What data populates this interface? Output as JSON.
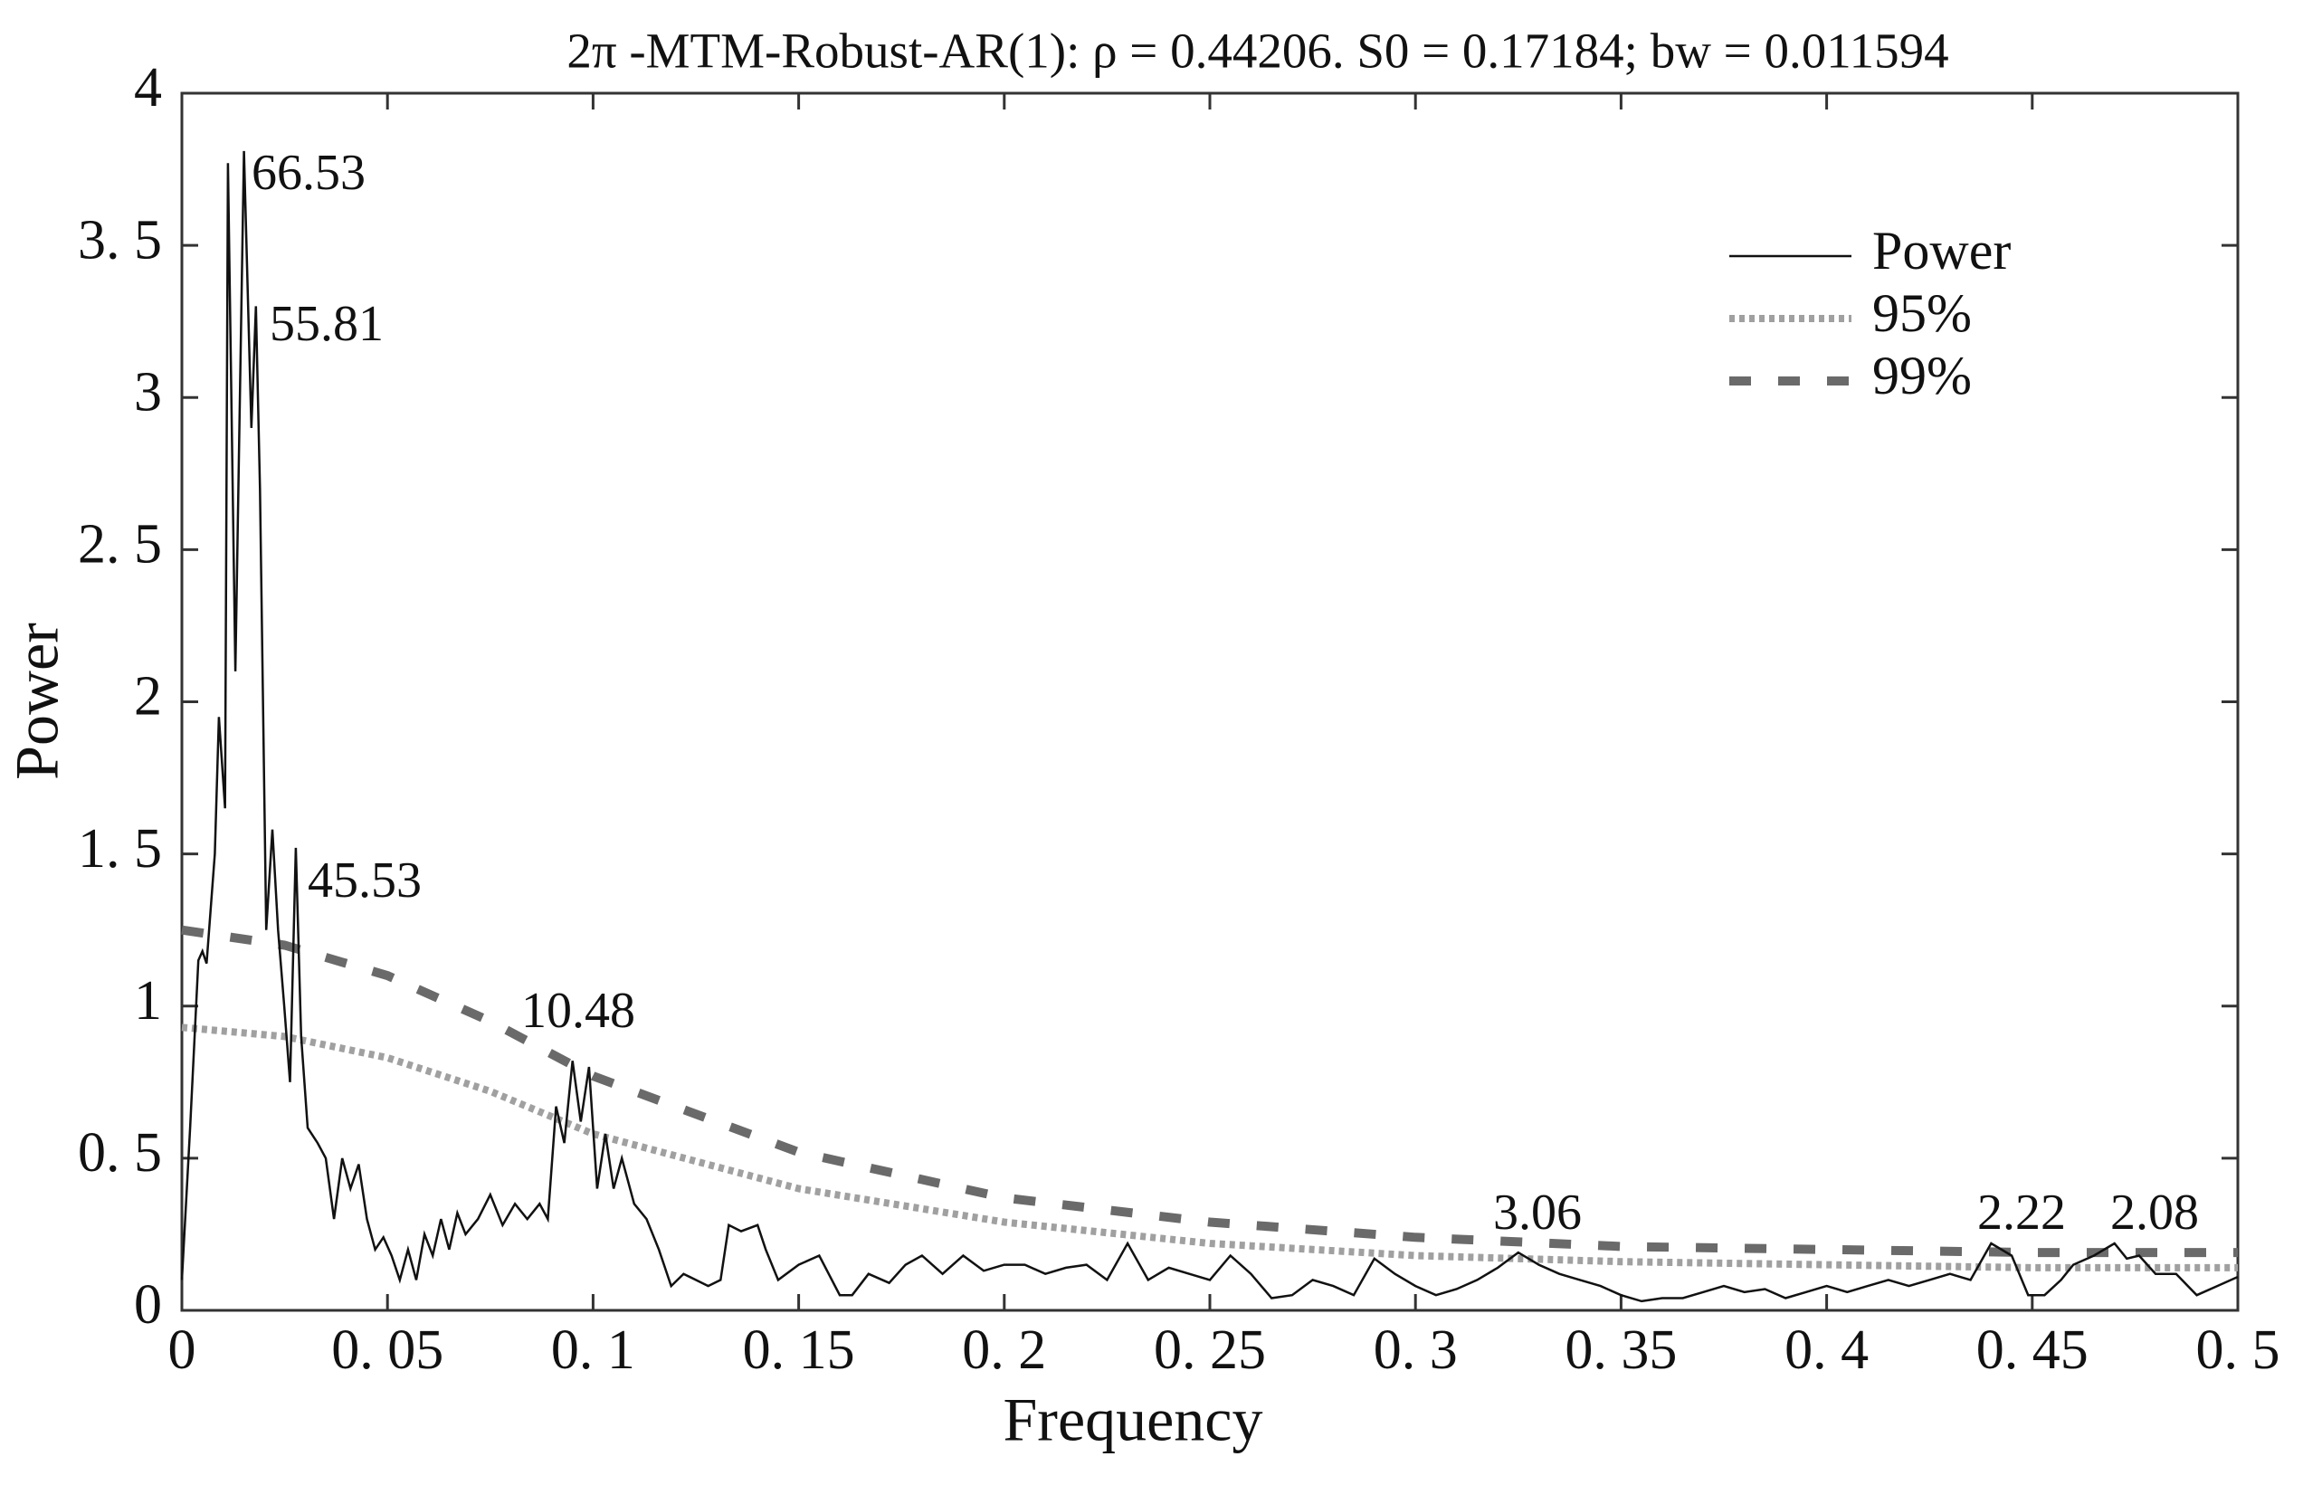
{
  "chart_data": {
    "type": "line",
    "title": "2π -MTM-Robust-AR(1):  ρ = 0.44206. S0 = 0.17184; bw = 0.011594",
    "x_label": "Frequency",
    "y_label": "Power",
    "xlim": [
      0,
      0.5
    ],
    "ylim": [
      0,
      4
    ],
    "xticks": [
      0,
      {
        "value": 0.05,
        "label": "0. 05"
      },
      {
        "value": 0.1,
        "label": "0. 1"
      },
      {
        "value": 0.15,
        "label": "0. 15"
      },
      {
        "value": 0.2,
        "label": "0. 2"
      },
      {
        "value": 0.25,
        "label": "0. 25"
      },
      {
        "value": 0.3,
        "label": "0. 3"
      },
      {
        "value": 0.35,
        "label": "0. 35"
      },
      {
        "value": 0.4,
        "label": "0. 4"
      },
      {
        "value": 0.45,
        "label": "0. 45"
      },
      {
        "value": 0.5,
        "label": "0. 5"
      }
    ],
    "yticks": [
      0,
      {
        "value": 0.5,
        "label": "0. 5"
      },
      1,
      {
        "value": 1.5,
        "label": "1. 5"
      },
      2,
      {
        "value": 2.5,
        "label": "2. 5"
      },
      3,
      {
        "value": 3.5,
        "label": "3. 5"
      },
      4
    ],
    "legend": "upper right",
    "grid": false,
    "series": [
      {
        "name": "Power",
        "color": "#111111",
        "style": "solid",
        "x": [
          0,
          0.002,
          0.004,
          0.005,
          0.006,
          0.008,
          0.009,
          0.0105,
          0.0112,
          0.013,
          0.0151,
          0.0169,
          0.018,
          0.019,
          0.0205,
          0.022,
          0.0234,
          0.0249,
          0.0263,
          0.0277,
          0.029,
          0.0306,
          0.033,
          0.035,
          0.037,
          0.039,
          0.041,
          0.043,
          0.045,
          0.047,
          0.049,
          0.051,
          0.053,
          0.055,
          0.057,
          0.059,
          0.061,
          0.063,
          0.065,
          0.067,
          0.069,
          0.072,
          0.075,
          0.078,
          0.081,
          0.084,
          0.087,
          0.089,
          0.091,
          0.093,
          0.095,
          0.097,
          0.099,
          0.101,
          0.103,
          0.105,
          0.107,
          0.11,
          0.113,
          0.116,
          0.119,
          0.122,
          0.125,
          0.128,
          0.131,
          0.133,
          0.136,
          0.14,
          0.142,
          0.145,
          0.15,
          0.155,
          0.16,
          0.163,
          0.167,
          0.172,
          0.176,
          0.18,
          0.185,
          0.19,
          0.195,
          0.2,
          0.205,
          0.21,
          0.215,
          0.22,
          0.225,
          0.23,
          0.235,
          0.24,
          0.245,
          0.25,
          0.255,
          0.26,
          0.265,
          0.27,
          0.275,
          0.28,
          0.285,
          0.29,
          0.295,
          0.3,
          0.305,
          0.31,
          0.315,
          0.32,
          0.325,
          0.33,
          0.335,
          0.34,
          0.345,
          0.35,
          0.355,
          0.36,
          0.365,
          0.37,
          0.375,
          0.38,
          0.385,
          0.39,
          0.395,
          0.4,
          0.405,
          0.41,
          0.415,
          0.42,
          0.425,
          0.43,
          0.435,
          0.44,
          0.445,
          0.449,
          0.453,
          0.457,
          0.46,
          0.465,
          0.47,
          0.473,
          0.476,
          0.48,
          0.485,
          0.49,
          0.495,
          0.5
        ],
        "values": [
          0.1,
          0.6,
          1.15,
          1.18,
          1.14,
          1.5,
          1.95,
          1.65,
          3.77,
          2.1,
          3.81,
          2.9,
          3.3,
          2.7,
          1.25,
          1.58,
          1.25,
          1.0,
          0.75,
          1.52,
          0.9,
          0.6,
          0.55,
          0.5,
          0.3,
          0.5,
          0.4,
          0.48,
          0.3,
          0.2,
          0.24,
          0.18,
          0.1,
          0.2,
          0.1,
          0.25,
          0.18,
          0.3,
          0.2,
          0.32,
          0.25,
          0.3,
          0.38,
          0.28,
          0.35,
          0.3,
          0.35,
          0.3,
          0.67,
          0.55,
          0.82,
          0.62,
          0.8,
          0.4,
          0.58,
          0.4,
          0.5,
          0.35,
          0.3,
          0.2,
          0.08,
          0.12,
          0.1,
          0.08,
          0.1,
          0.28,
          0.26,
          0.28,
          0.2,
          0.1,
          0.15,
          0.18,
          0.05,
          0.05,
          0.12,
          0.09,
          0.15,
          0.18,
          0.12,
          0.18,
          0.13,
          0.15,
          0.15,
          0.12,
          0.14,
          0.15,
          0.1,
          0.22,
          0.1,
          0.14,
          0.12,
          0.1,
          0.18,
          0.12,
          0.04,
          0.05,
          0.1,
          0.08,
          0.05,
          0.17,
          0.12,
          0.08,
          0.05,
          0.07,
          0.1,
          0.14,
          0.19,
          0.15,
          0.12,
          0.1,
          0.08,
          0.05,
          0.03,
          0.04,
          0.04,
          0.06,
          0.08,
          0.06,
          0.07,
          0.04,
          0.06,
          0.08,
          0.06,
          0.08,
          0.1,
          0.08,
          0.1,
          0.12,
          0.1,
          0.22,
          0.18,
          0.05,
          0.05,
          0.1,
          0.15,
          0.18,
          0.22,
          0.17,
          0.18,
          0.12,
          0.12,
          0.05,
          0.08,
          0.11
        ]
      },
      {
        "name": "95%",
        "color": "#a0a0a0",
        "style": "dotted",
        "x": [
          0,
          0.025,
          0.05,
          0.075,
          0.1,
          0.15,
          0.2,
          0.25,
          0.3,
          0.35,
          0.4,
          0.45,
          0.5
        ],
        "values": [
          0.93,
          0.9,
          0.83,
          0.72,
          0.58,
          0.4,
          0.29,
          0.22,
          0.18,
          0.16,
          0.15,
          0.14,
          0.14
        ]
      },
      {
        "name": "99%",
        "color": "#6a6a6a",
        "style": "dashed",
        "x": [
          0,
          0.025,
          0.05,
          0.075,
          0.1,
          0.15,
          0.2,
          0.25,
          0.3,
          0.35,
          0.4,
          0.45,
          0.5
        ],
        "values": [
          1.25,
          1.2,
          1.1,
          0.95,
          0.77,
          0.52,
          0.37,
          0.29,
          0.24,
          0.21,
          0.2,
          0.19,
          0.19
        ]
      }
    ],
    "annotations": [
      "66.53",
      "55.81",
      "45.53",
      "10.48",
      "3.06",
      "2.22",
      "2.08"
    ]
  }
}
